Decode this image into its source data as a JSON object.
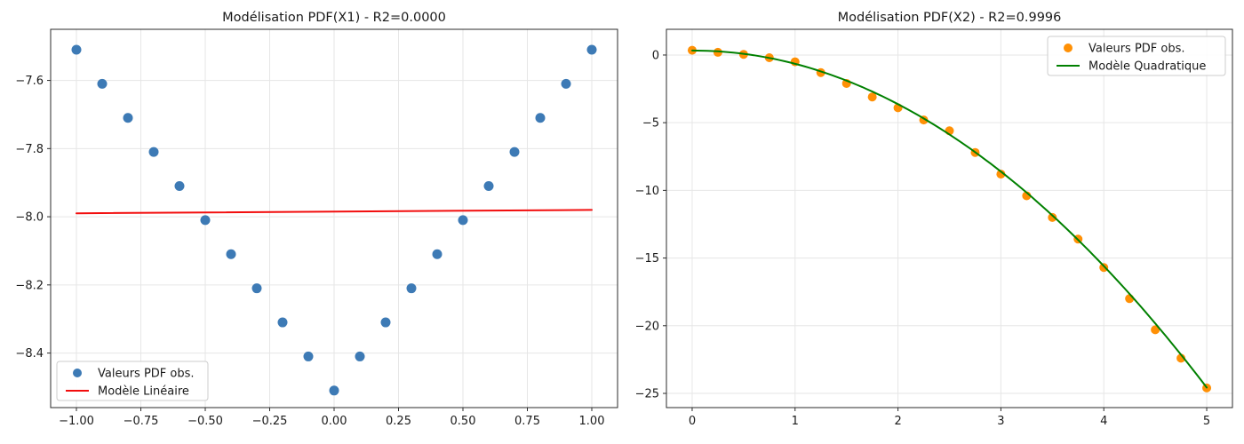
{
  "figure": {
    "background": "#ffffff",
    "text_color": "#1a1a1a",
    "grid_color": "#e6e6e6",
    "spine_color": "#2b2b2b",
    "legend_border_color": "#cccccc"
  },
  "chart_data": [
    {
      "type": "scatter",
      "title": "Modélisation PDF(X1) - R2=0.0000",
      "xlabel": "",
      "ylabel": "",
      "xlim": [
        -1.1,
        1.1
      ],
      "ylim": [
        -8.56,
        -7.45
      ],
      "grid": true,
      "legend_position": "lower-left",
      "xticks": {
        "values": [
          -1.0,
          -0.75,
          -0.5,
          -0.25,
          0.0,
          0.25,
          0.5,
          0.75,
          1.0
        ],
        "labels": [
          "−1.00",
          "−0.75",
          "−0.50",
          "−0.25",
          "0.00",
          "0.25",
          "0.50",
          "0.75",
          "1.00"
        ]
      },
      "yticks": {
        "values": [
          -7.6,
          -7.8,
          -8.0,
          -8.2,
          -8.4
        ],
        "labels": [
          "−7.6",
          "−7.8",
          "−8.0",
          "−8.2",
          "−8.4"
        ]
      },
      "x": [
        -1.0,
        -0.9,
        -0.8,
        -0.7,
        -0.6,
        -0.5,
        -0.4,
        -0.3,
        -0.2,
        -0.1,
        0.0,
        0.1,
        0.2,
        0.3,
        0.4,
        0.5,
        0.6,
        0.7,
        0.8,
        0.9,
        1.0
      ],
      "series": [
        {
          "name": "Valeurs PDF obs.",
          "kind": "scatter",
          "color": "#3d7ab5",
          "marker_radius": 5.5,
          "y": [
            -7.51,
            -7.61,
            -7.71,
            -7.81,
            -7.91,
            -8.01,
            -8.11,
            -8.21,
            -8.31,
            -8.41,
            -8.51,
            -8.41,
            -8.31,
            -8.21,
            -8.11,
            -8.01,
            -7.91,
            -7.81,
            -7.71,
            -7.61,
            -7.51
          ]
        },
        {
          "name": "Modèle Linéaire",
          "kind": "line",
          "color": "#f20d0d",
          "width": 2,
          "line_x": [
            -1.0,
            1.0
          ],
          "line_y": [
            -7.99,
            -7.98
          ]
        }
      ]
    },
    {
      "type": "scatter",
      "title": "Modélisation PDF(X2) - R2=0.9996",
      "xlabel": "",
      "ylabel": "",
      "xlim": [
        -0.25,
        5.25
      ],
      "ylim": [
        -26.05,
        1.9
      ],
      "grid": true,
      "legend_position": "upper-right",
      "xticks": {
        "values": [
          0,
          1,
          2,
          3,
          4,
          5
        ],
        "labels": [
          "0",
          "1",
          "2",
          "3",
          "4",
          "5"
        ]
      },
      "yticks": {
        "values": [
          0,
          -5,
          -10,
          -15,
          -20,
          -25
        ],
        "labels": [
          "0",
          "−5",
          "−10",
          "−15",
          "−20",
          "−25"
        ]
      },
      "x": [
        0.0,
        0.25,
        0.5,
        0.75,
        1.0,
        1.25,
        1.5,
        1.75,
        2.0,
        2.25,
        2.5,
        2.75,
        3.0,
        3.25,
        3.5,
        3.75,
        4.0,
        4.25,
        4.5,
        4.75,
        5.0
      ],
      "series": [
        {
          "name": "Valeurs PDF obs.",
          "kind": "scatter",
          "color": "#ff9005",
          "marker_radius": 5,
          "y": [
            0.35,
            0.2,
            0.05,
            -0.2,
            -0.5,
            -1.3,
            -2.1,
            -3.1,
            -3.9,
            -4.8,
            -5.6,
            -7.2,
            -8.8,
            -10.4,
            -12.0,
            -13.6,
            -15.7,
            -18.0,
            -20.3,
            -22.4,
            -24.6
          ]
        },
        {
          "name": "Modèle Quadratique",
          "kind": "curve",
          "color": "#008000",
          "width": 2,
          "poly_coeffs": [
            0.33,
            0.02,
            -1.0
          ],
          "curve_range": [
            0.0,
            5.0
          ]
        }
      ]
    }
  ]
}
